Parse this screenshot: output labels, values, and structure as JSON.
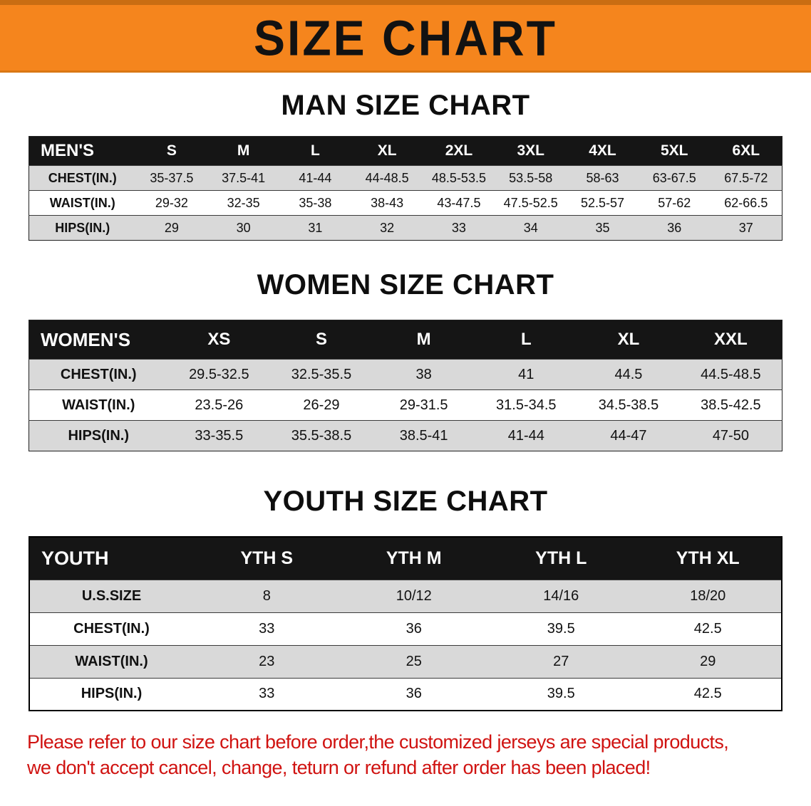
{
  "banner": {
    "title": "SIZE CHART"
  },
  "sections": [
    {
      "heading": "MAN SIZE CHART",
      "table": {
        "label": "MEN'S",
        "columns": [
          "S",
          "M",
          "L",
          "XL",
          "2XL",
          "3XL",
          "4XL",
          "5XL",
          "6XL"
        ],
        "rows": [
          {
            "label": "CHEST(IN.)",
            "values": [
              "35-37.5",
              "37.5-41",
              "41-44",
              "44-48.5",
              "48.5-53.5",
              "53.5-58",
              "58-63",
              "63-67.5",
              "67.5-72"
            ]
          },
          {
            "label": "WAIST(IN.)",
            "values": [
              "29-32",
              "32-35",
              "35-38",
              "38-43",
              "43-47.5",
              "47.5-52.5",
              "52.5-57",
              "57-62",
              "62-66.5"
            ]
          },
          {
            "label": "HIPS(IN.)",
            "values": [
              "29",
              "30",
              "31",
              "32",
              "33",
              "34",
              "35",
              "36",
              "37"
            ]
          }
        ]
      }
    },
    {
      "heading": "WOMEN SIZE CHART",
      "table": {
        "label": "WOMEN'S",
        "columns": [
          "XS",
          "S",
          "M",
          "L",
          "XL",
          "XXL"
        ],
        "rows": [
          {
            "label": "CHEST(IN.)",
            "values": [
              "29.5-32.5",
              "32.5-35.5",
              "38",
              "41",
              "44.5",
              "44.5-48.5"
            ]
          },
          {
            "label": "WAIST(IN.)",
            "values": [
              "23.5-26",
              "26-29",
              "29-31.5",
              "31.5-34.5",
              "34.5-38.5",
              "38.5-42.5"
            ]
          },
          {
            "label": "HIPS(IN.)",
            "values": [
              "33-35.5",
              "35.5-38.5",
              "38.5-41",
              "41-44",
              "44-47",
              "47-50"
            ]
          }
        ]
      }
    },
    {
      "heading": "YOUTH SIZE CHART",
      "table": {
        "label": "YOUTH",
        "columns": [
          "YTH S",
          "YTH M",
          "YTH L",
          "YTH XL"
        ],
        "rows": [
          {
            "label": "U.S.SIZE",
            "values": [
              "8",
              "10/12",
              "14/16",
              "18/20"
            ]
          },
          {
            "label": "CHEST(IN.)",
            "values": [
              "33",
              "36",
              "39.5",
              "42.5"
            ]
          },
          {
            "label": "WAIST(IN.)",
            "values": [
              "23",
              "25",
              "27",
              "29"
            ]
          },
          {
            "label": "HIPS(IN.)",
            "values": [
              "33",
              "36",
              "39.5",
              "42.5"
            ]
          }
        ]
      }
    }
  ],
  "disclaimer": {
    "line1": "Please refer to our size chart before order,the customized jerseys are special products,",
    "line2": "we don't accept cancel, change, teturn or refund after order has been placed!"
  },
  "colors": {
    "banner_orange": "#f5851d",
    "header_black": "#151515",
    "stripe_gray": "#d9d9d9",
    "disclaimer_red": "#d01311"
  }
}
